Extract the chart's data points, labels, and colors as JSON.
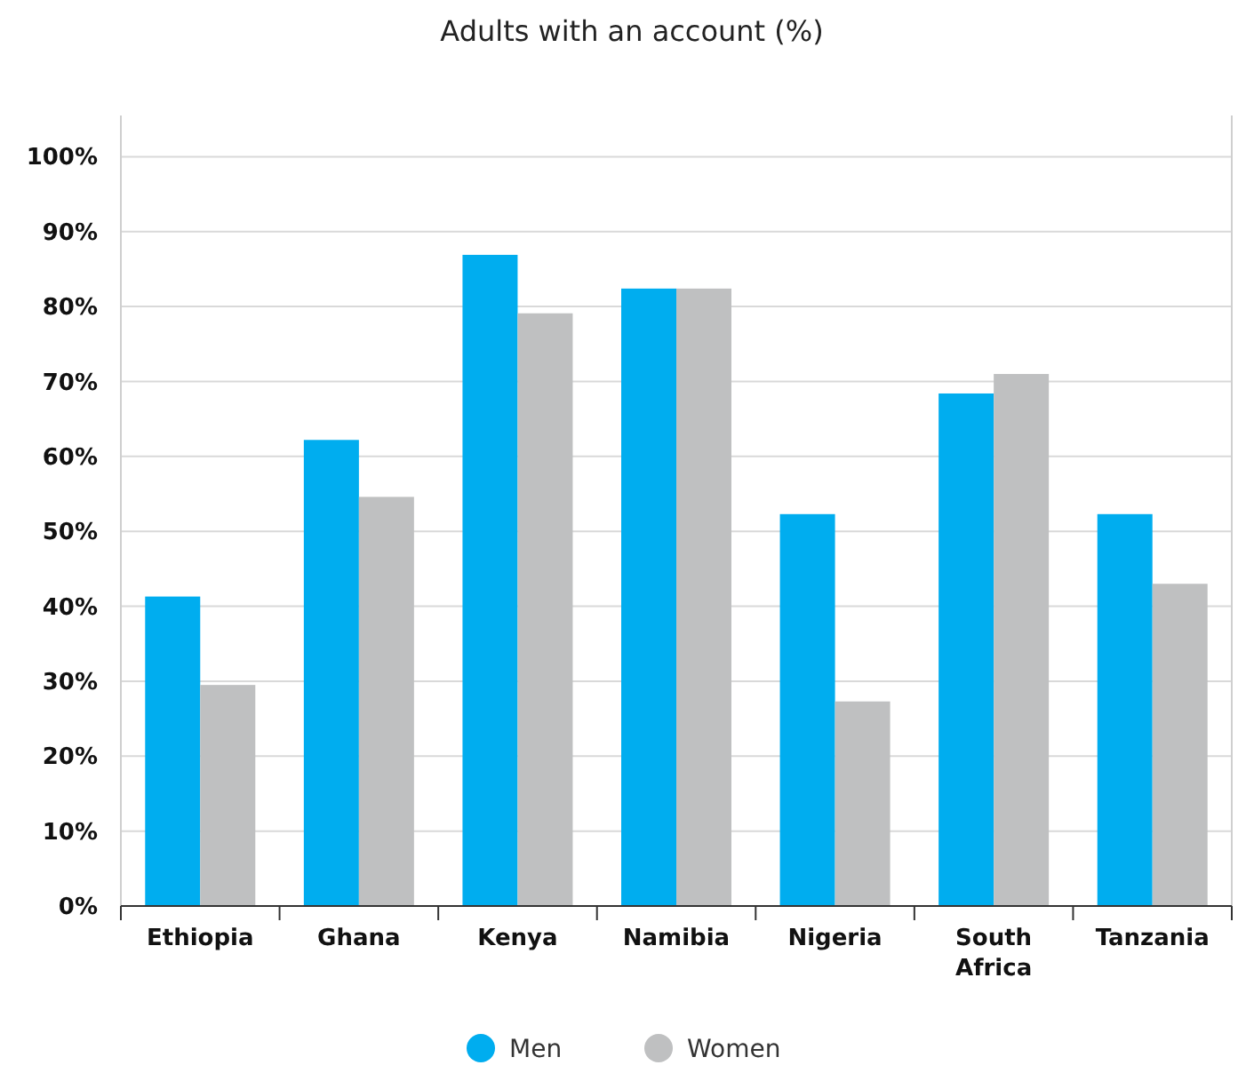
{
  "chart_data": {
    "type": "bar",
    "title": "Adults with an account (%)",
    "categories": [
      "Ethiopia",
      "Ghana",
      "Kenya",
      "Namibia",
      "Nigeria",
      "South Africa",
      "Tanzania"
    ],
    "series": [
      {
        "name": "Men",
        "color": "#00adef",
        "values": [
          41.3,
          62.2,
          86.9,
          82.4,
          52.3,
          68.4,
          52.3
        ]
      },
      {
        "name": "Women",
        "color": "#bfc0c1",
        "values": [
          29.5,
          54.6,
          79.1,
          82.4,
          27.3,
          71.0,
          43.0
        ]
      }
    ],
    "ylim": [
      0,
      105.5
    ],
    "yticks": [
      {
        "value": 0,
        "label": "0%"
      },
      {
        "value": 10,
        "label": "10%"
      },
      {
        "value": 20,
        "label": "20%"
      },
      {
        "value": 30,
        "label": "30%"
      },
      {
        "value": 40,
        "label": "40%"
      },
      {
        "value": 50,
        "label": "50%"
      },
      {
        "value": 60,
        "label": "60%"
      },
      {
        "value": 70,
        "label": "70%"
      },
      {
        "value": 80,
        "label": "80%"
      },
      {
        "value": 90,
        "label": "90%"
      },
      {
        "value": 100,
        "label": "100%"
      }
    ],
    "grid": "y",
    "legend": "bottom"
  }
}
